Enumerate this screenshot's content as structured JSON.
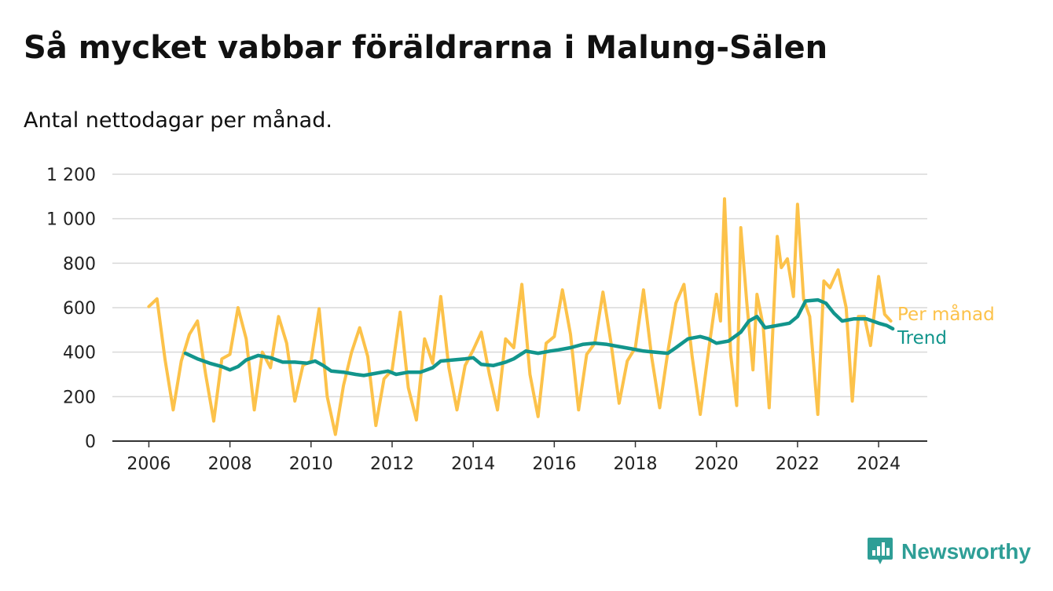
{
  "title": "Så mycket vabbar föräldrarna i Malung-Sälen",
  "subtitle": "Antal nettodagar per månad.",
  "brand": {
    "name": "Newsworthy",
    "icon": "newsworthy-logo-icon",
    "color": "#2e9e96"
  },
  "chart_data": {
    "type": "line",
    "title": "Så mycket vabbar föräldrarna i Malung-Sälen",
    "subtitle": "Antal nettodagar per månad.",
    "xlabel": "",
    "ylabel": "",
    "xlim": [
      2005.1,
      2025.2
    ],
    "ylim": [
      0,
      1200
    ],
    "x_ticks": [
      2006,
      2008,
      2010,
      2012,
      2014,
      2016,
      2018,
      2020,
      2022,
      2024
    ],
    "x_tick_labels": [
      "2006",
      "2008",
      "2010",
      "2012",
      "2014",
      "2016",
      "2018",
      "2020",
      "2022",
      "2024"
    ],
    "y_ticks": [
      0,
      200,
      400,
      600,
      800,
      1000,
      1200
    ],
    "y_tick_labels": [
      "0",
      "200",
      "400",
      "600",
      "800",
      "1 000",
      "1 200"
    ],
    "grid": "horizontal",
    "legend": "inline-right",
    "series": [
      {
        "name": "Per månad",
        "color": "#fcc24a",
        "x": [
          2006.0,
          2006.2,
          2006.4,
          2006.6,
          2006.8,
          2007.0,
          2007.2,
          2007.4,
          2007.6,
          2007.8,
          2008.0,
          2008.2,
          2008.4,
          2008.6,
          2008.8,
          2009.0,
          2009.2,
          2009.4,
          2009.6,
          2009.8,
          2010.0,
          2010.2,
          2010.4,
          2010.6,
          2010.8,
          2011.0,
          2011.2,
          2011.4,
          2011.6,
          2011.8,
          2012.0,
          2012.2,
          2012.4,
          2012.6,
          2012.8,
          2013.0,
          2013.2,
          2013.4,
          2013.6,
          2013.8,
          2014.0,
          2014.2,
          2014.4,
          2014.6,
          2014.8,
          2015.0,
          2015.2,
          2015.4,
          2015.6,
          2015.8,
          2016.0,
          2016.2,
          2016.4,
          2016.6,
          2016.8,
          2017.0,
          2017.2,
          2017.4,
          2017.6,
          2017.8,
          2018.0,
          2018.2,
          2018.4,
          2018.6,
          2018.8,
          2019.0,
          2019.2,
          2019.4,
          2019.6,
          2019.8,
          2020.0,
          2020.1,
          2020.2,
          2020.35,
          2020.5,
          2020.6,
          2020.75,
          2020.9,
          2021.0,
          2021.15,
          2021.3,
          2021.5,
          2021.6,
          2021.75,
          2021.9,
          2022.0,
          2022.15,
          2022.3,
          2022.5,
          2022.65,
          2022.8,
          2023.0,
          2023.2,
          2023.35,
          2023.5,
          2023.65,
          2023.8,
          2024.0,
          2024.15,
          2024.3
        ],
        "values": [
          605,
          640,
          365,
          140,
          360,
          480,
          540,
          300,
          90,
          370,
          390,
          600,
          460,
          140,
          400,
          330,
          560,
          440,
          180,
          340,
          360,
          595,
          200,
          30,
          250,
          400,
          510,
          380,
          70,
          280,
          320,
          580,
          240,
          95,
          460,
          350,
          650,
          330,
          140,
          340,
          410,
          490,
          300,
          140,
          460,
          420,
          705,
          300,
          110,
          440,
          470,
          680,
          480,
          140,
          390,
          440,
          670,
          440,
          170,
          360,
          420,
          680,
          380,
          150,
          400,
          620,
          705,
          380,
          120,
          400,
          660,
          540,
          1090,
          390,
          160,
          960,
          620,
          320,
          660,
          520,
          150,
          920,
          780,
          820,
          650,
          1065,
          640,
          560,
          120,
          720,
          690,
          770,
          600,
          180,
          560,
          560,
          430,
          740,
          570,
          540
        ]
      },
      {
        "name": "Trend",
        "color": "#12958c",
        "x": [
          2006.9,
          2007.2,
          2007.5,
          2007.8,
          2008.0,
          2008.2,
          2008.4,
          2008.7,
          2009.0,
          2009.3,
          2009.6,
          2009.9,
          2010.1,
          2010.3,
          2010.5,
          2010.8,
          2011.1,
          2011.3,
          2011.6,
          2011.9,
          2012.1,
          2012.4,
          2012.7,
          2013.0,
          2013.2,
          2013.5,
          2013.8,
          2014.0,
          2014.2,
          2014.5,
          2014.8,
          2015.0,
          2015.3,
          2015.6,
          2015.9,
          2016.1,
          2016.4,
          2016.7,
          2017.0,
          2017.3,
          2017.6,
          2017.9,
          2018.2,
          2018.5,
          2018.8,
          2019.0,
          2019.3,
          2019.6,
          2019.8,
          2020.0,
          2020.3,
          2020.6,
          2020.8,
          2021.0,
          2021.2,
          2021.5,
          2021.8,
          2022.0,
          2022.2,
          2022.5,
          2022.7,
          2022.9,
          2023.1,
          2023.4,
          2023.7,
          2024.0,
          2024.2,
          2024.35
        ],
        "values": [
          395,
          370,
          350,
          335,
          320,
          335,
          365,
          385,
          375,
          355,
          355,
          350,
          360,
          340,
          315,
          310,
          300,
          295,
          305,
          315,
          300,
          310,
          310,
          330,
          360,
          365,
          370,
          375,
          345,
          340,
          355,
          370,
          405,
          395,
          405,
          410,
          420,
          435,
          440,
          435,
          425,
          415,
          405,
          400,
          395,
          420,
          460,
          470,
          460,
          440,
          450,
          490,
          540,
          560,
          510,
          520,
          530,
          560,
          630,
          635,
          620,
          575,
          540,
          550,
          550,
          530,
          520,
          505
        ]
      }
    ]
  }
}
